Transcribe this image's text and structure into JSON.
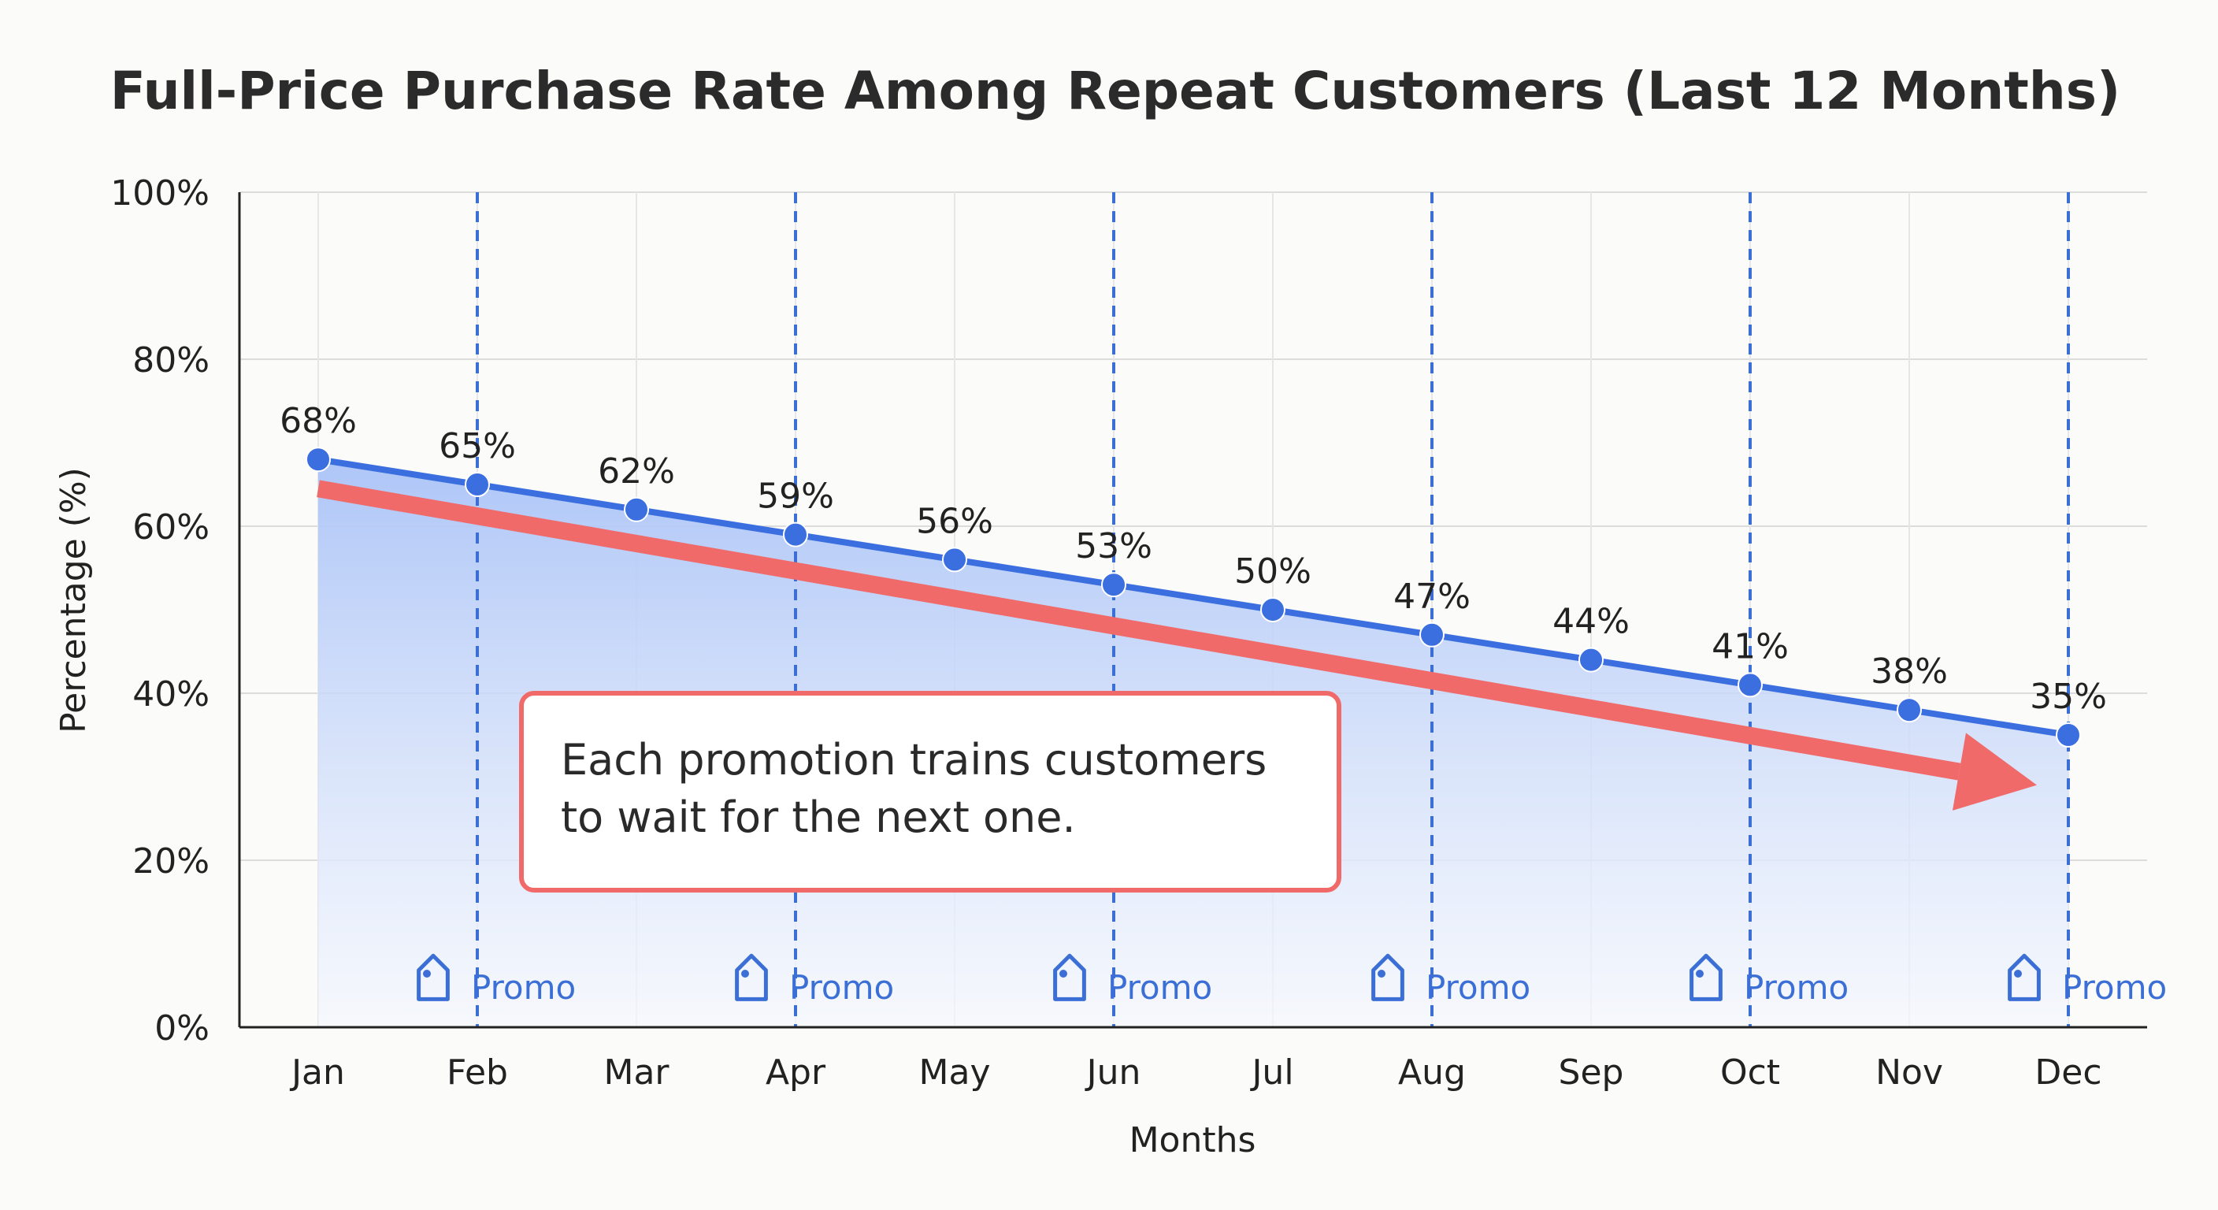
{
  "chart_data": {
    "type": "area",
    "title": "Full-Price Purchase Rate Among Repeat Customers (Last 12 Months)",
    "xlabel": "Months",
    "ylabel": "Percentage (%)",
    "categories": [
      "Jan",
      "Feb",
      "Mar",
      "Apr",
      "May",
      "Jun",
      "Jul",
      "Aug",
      "Sep",
      "Oct",
      "Nov",
      "Dec"
    ],
    "series": [
      {
        "name": "Full-price purchase rate",
        "values": [
          68,
          65,
          62,
          59,
          56,
          53,
          50,
          47,
          44,
          41,
          38,
          35
        ]
      }
    ],
    "data_labels": [
      "68%",
      "65%",
      "62%",
      "59%",
      "56%",
      "53%",
      "50%",
      "47%",
      "44%",
      "41%",
      "38%",
      "35%"
    ],
    "ylim": [
      0,
      100
    ],
    "y_ticks": [
      0,
      20,
      40,
      60,
      80,
      100
    ],
    "y_tick_labels": [
      "0%",
      "20%",
      "40%",
      "60%",
      "80%",
      "100%"
    ],
    "grid": true,
    "promo_months": [
      "Feb",
      "Apr",
      "Jun",
      "Aug",
      "Oct",
      "Dec"
    ],
    "promo_label": "Promo",
    "trend_arrow": {
      "from": "Jan",
      "to": "Dec",
      "from_value": 64.5,
      "to_value": 29
    },
    "annotation": {
      "lines": [
        "Each promotion trains customers",
        "to wait for the next one."
      ],
      "anchor_month": "Mar",
      "anchor_value": 40
    },
    "colors": {
      "line": "#3b6fe0",
      "area_top": "#aac3f7",
      "area_bottom": "#f4f7fe",
      "promo": "#3b6fd6",
      "arrow": "#f06a6a",
      "grid": "#dcdcdc",
      "axis": "#222222"
    }
  }
}
